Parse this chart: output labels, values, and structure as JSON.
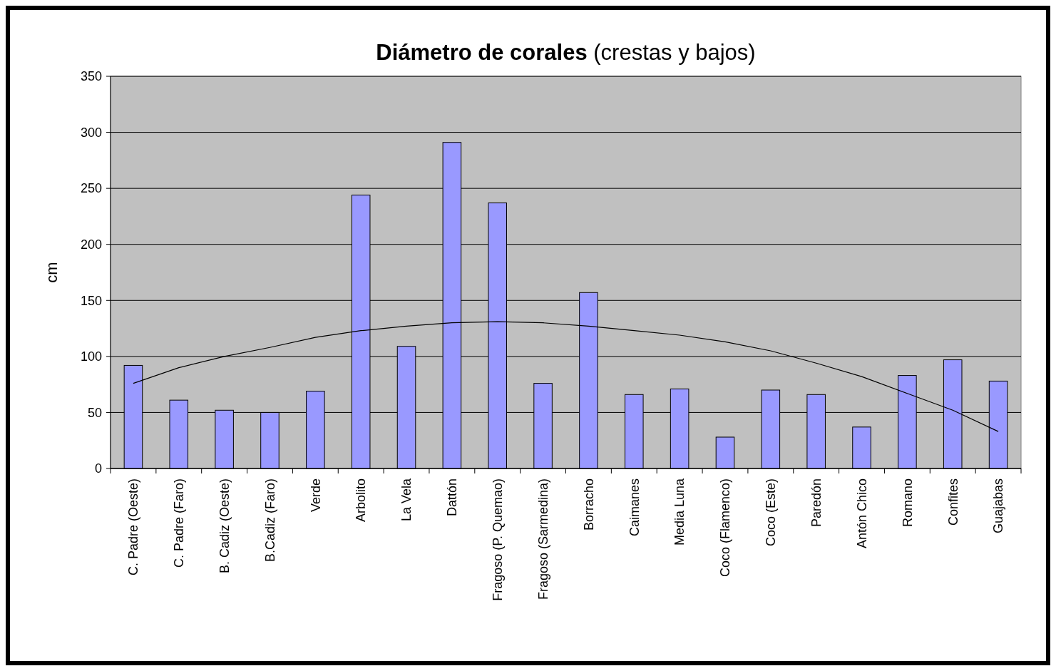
{
  "chart_data": {
    "type": "bar",
    "title": "Diámetro de corales (crestas y bajos)",
    "ylabel": "cm",
    "categories": [
      "C. Padre (Oeste)",
      "C. Padre (Faro)",
      "B. Cadiz (Oeste)",
      "B.Cadiz (Faro)",
      "Verde",
      "Arbolito",
      "La Vela",
      "Dattón",
      "Fragoso (P. Quemao)",
      "Fragoso (Sarmedina)",
      "Borracho",
      "Caimanes",
      "Media Luna",
      "Coco (Flamenco)",
      "Coco (Este)",
      "Paredón",
      "Antón Chico",
      "Romano",
      "Confites",
      "Guajabas"
    ],
    "series": [
      {
        "color": "#9999ff",
        "values": [
          92,
          61,
          52,
          50,
          69,
          244,
          109,
          291,
          237,
          76,
          157,
          66,
          71,
          28,
          70,
          66,
          37,
          83,
          97,
          78
        ]
      },
      {
        "type": "line",
        "color": "#000000",
        "values": [
          76,
          90,
          100,
          108,
          117,
          123,
          127,
          130,
          131,
          130,
          127,
          123,
          119,
          113,
          105,
          94,
          82,
          67,
          52,
          33
        ]
      }
    ],
    "ylim": [
      0,
      350
    ],
    "yticks": [
      0,
      50,
      100,
      150,
      200,
      250,
      300,
      350
    ],
    "grid": "y"
  }
}
